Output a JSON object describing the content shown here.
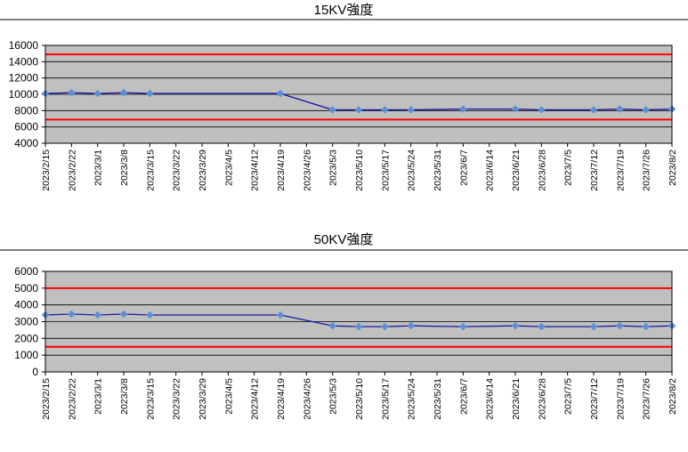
{
  "chart_data": [
    {
      "type": "line",
      "title": "15KV強度",
      "ylim": [
        4000,
        16000
      ],
      "yticks": [
        "16000",
        "14000",
        "12000",
        "10000",
        "8000",
        "6000",
        "4000"
      ],
      "ytick_values": [
        16000,
        14000,
        12000,
        10000,
        8000,
        6000,
        4000
      ],
      "categories": [
        "2023/2/15",
        "2023/2/22",
        "2023/3/1",
        "2023/3/8",
        "2023/3/15",
        "2023/3/22",
        "2023/3/29",
        "2023/4/5",
        "2023/4/12",
        "2023/4/19",
        "2023/4/26",
        "2023/5/3",
        "2023/5/10",
        "2023/5/17",
        "2023/5/24",
        "2023/5/31",
        "2023/6/7",
        "2023/6/14",
        "2023/6/21",
        "2023/6/28",
        "2023/7/5",
        "2023/7/12",
        "2023/7/19",
        "2023/7/26",
        "2023/8/2"
      ],
      "series": [
        {
          "values": [
            10100,
            10200,
            10100,
            10200,
            10100,
            null,
            null,
            null,
            null,
            10100,
            null,
            8100,
            8100,
            8100,
            8100,
            null,
            8200,
            null,
            8200,
            8100,
            null,
            8100,
            8200,
            8100,
            8200
          ],
          "color": "#1a1aa0",
          "marker_color": "#5b8fd6"
        }
      ],
      "reference_lines": [
        {
          "value": 14900,
          "color": "#ff0000"
        },
        {
          "value": 6900,
          "color": "#ff0000"
        }
      ],
      "plot_background": "#c0c0c0",
      "grid": true
    },
    {
      "type": "line",
      "title": "50KV強度",
      "ylim": [
        0,
        6000
      ],
      "yticks": [
        "6000",
        "5000",
        "4000",
        "3000",
        "2000",
        "1000",
        "0"
      ],
      "ytick_values": [
        6000,
        5000,
        4000,
        3000,
        2000,
        1000,
        0
      ],
      "categories": [
        "2023/2/15",
        "2023/2/22",
        "2023/3/1",
        "2023/3/8",
        "2023/3/15",
        "2023/3/22",
        "2023/3/29",
        "2023/4/5",
        "2023/4/12",
        "2023/4/19",
        "2023/4/26",
        "2023/5/3",
        "2023/5/10",
        "2023/5/17",
        "2023/5/24",
        "2023/5/31",
        "2023/6/7",
        "2023/6/14",
        "2023/6/21",
        "2023/6/28",
        "2023/7/5",
        "2023/7/12",
        "2023/7/19",
        "2023/7/26",
        "2023/8/2"
      ],
      "series": [
        {
          "values": [
            3400,
            3450,
            3400,
            3450,
            3400,
            null,
            null,
            null,
            null,
            3400,
            null,
            2750,
            2700,
            2700,
            2750,
            null,
            2700,
            null,
            2750,
            2700,
            null,
            2700,
            2750,
            2700,
            2750
          ],
          "color": "#1a1aa0",
          "marker_color": "#5b8fd6"
        }
      ],
      "reference_lines": [
        {
          "value": 5000,
          "color": "#ff0000"
        },
        {
          "value": 1500,
          "color": "#ff0000"
        }
      ],
      "plot_background": "#c0c0c0",
      "grid": true
    }
  ]
}
